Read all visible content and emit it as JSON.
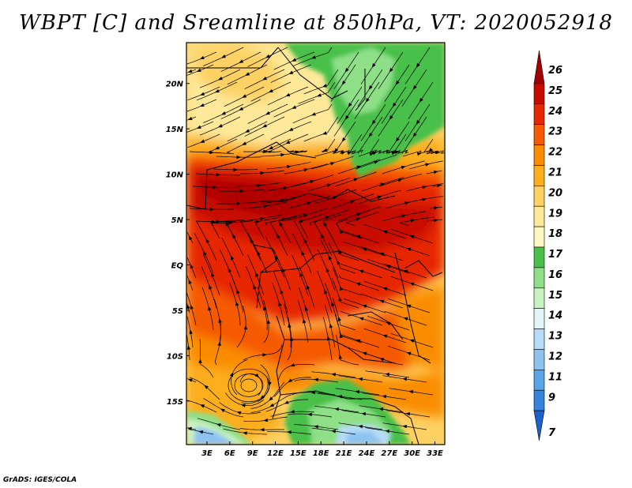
{
  "title": "WBPT [C] and Sreamline at 850hPa, VT: 2020052918",
  "credit": "GrADS: IGES/COLA",
  "map": {
    "variable": "Wet-bulb potential temperature (WBPT)",
    "units": "C",
    "level": "850hPa",
    "valid_time": "2020052918",
    "lon_labels": [
      "3E",
      "6E",
      "9E",
      "12E",
      "15E",
      "18E",
      "21E",
      "24E",
      "27E",
      "30E",
      "33E"
    ],
    "lon_values": [
      3,
      6,
      9,
      12,
      15,
      18,
      21,
      24,
      27,
      30,
      33
    ],
    "lat_labels": [
      "20N",
      "15N",
      "10N",
      "5N",
      "EQ",
      "5S",
      "10S",
      "15S"
    ],
    "lat_values": [
      20,
      15,
      10,
      5,
      0,
      -5,
      -10,
      -15
    ],
    "lon_range": [
      0.3,
      34.3
    ],
    "lat_range": [
      -19.8,
      24.5
    ]
  },
  "colorbar": {
    "labels": [
      "26",
      "25",
      "24",
      "23",
      "22",
      "21",
      "20",
      "19",
      "18",
      "17",
      "16",
      "15",
      "14",
      "13",
      "12",
      "11",
      "9",
      "7"
    ],
    "colors": [
      "#a50000",
      "#c80a00",
      "#e62800",
      "#f55a00",
      "#fa8c00",
      "#fcae1c",
      "#fdd164",
      "#fee99a",
      "#fdf7c4",
      "#48c04a",
      "#8edf88",
      "#c9f2c2",
      "#e2f5fb",
      "#b7dcf7",
      "#8ec3f1",
      "#5aa4e8",
      "#3784de",
      "#1c5fce"
    ]
  },
  "regions": {
    "warm_core": "10N to 4S, peak 24-26",
    "north_desert": "18-20",
    "northeast_cool": "16-17",
    "south_cool": "12-17"
  }
}
